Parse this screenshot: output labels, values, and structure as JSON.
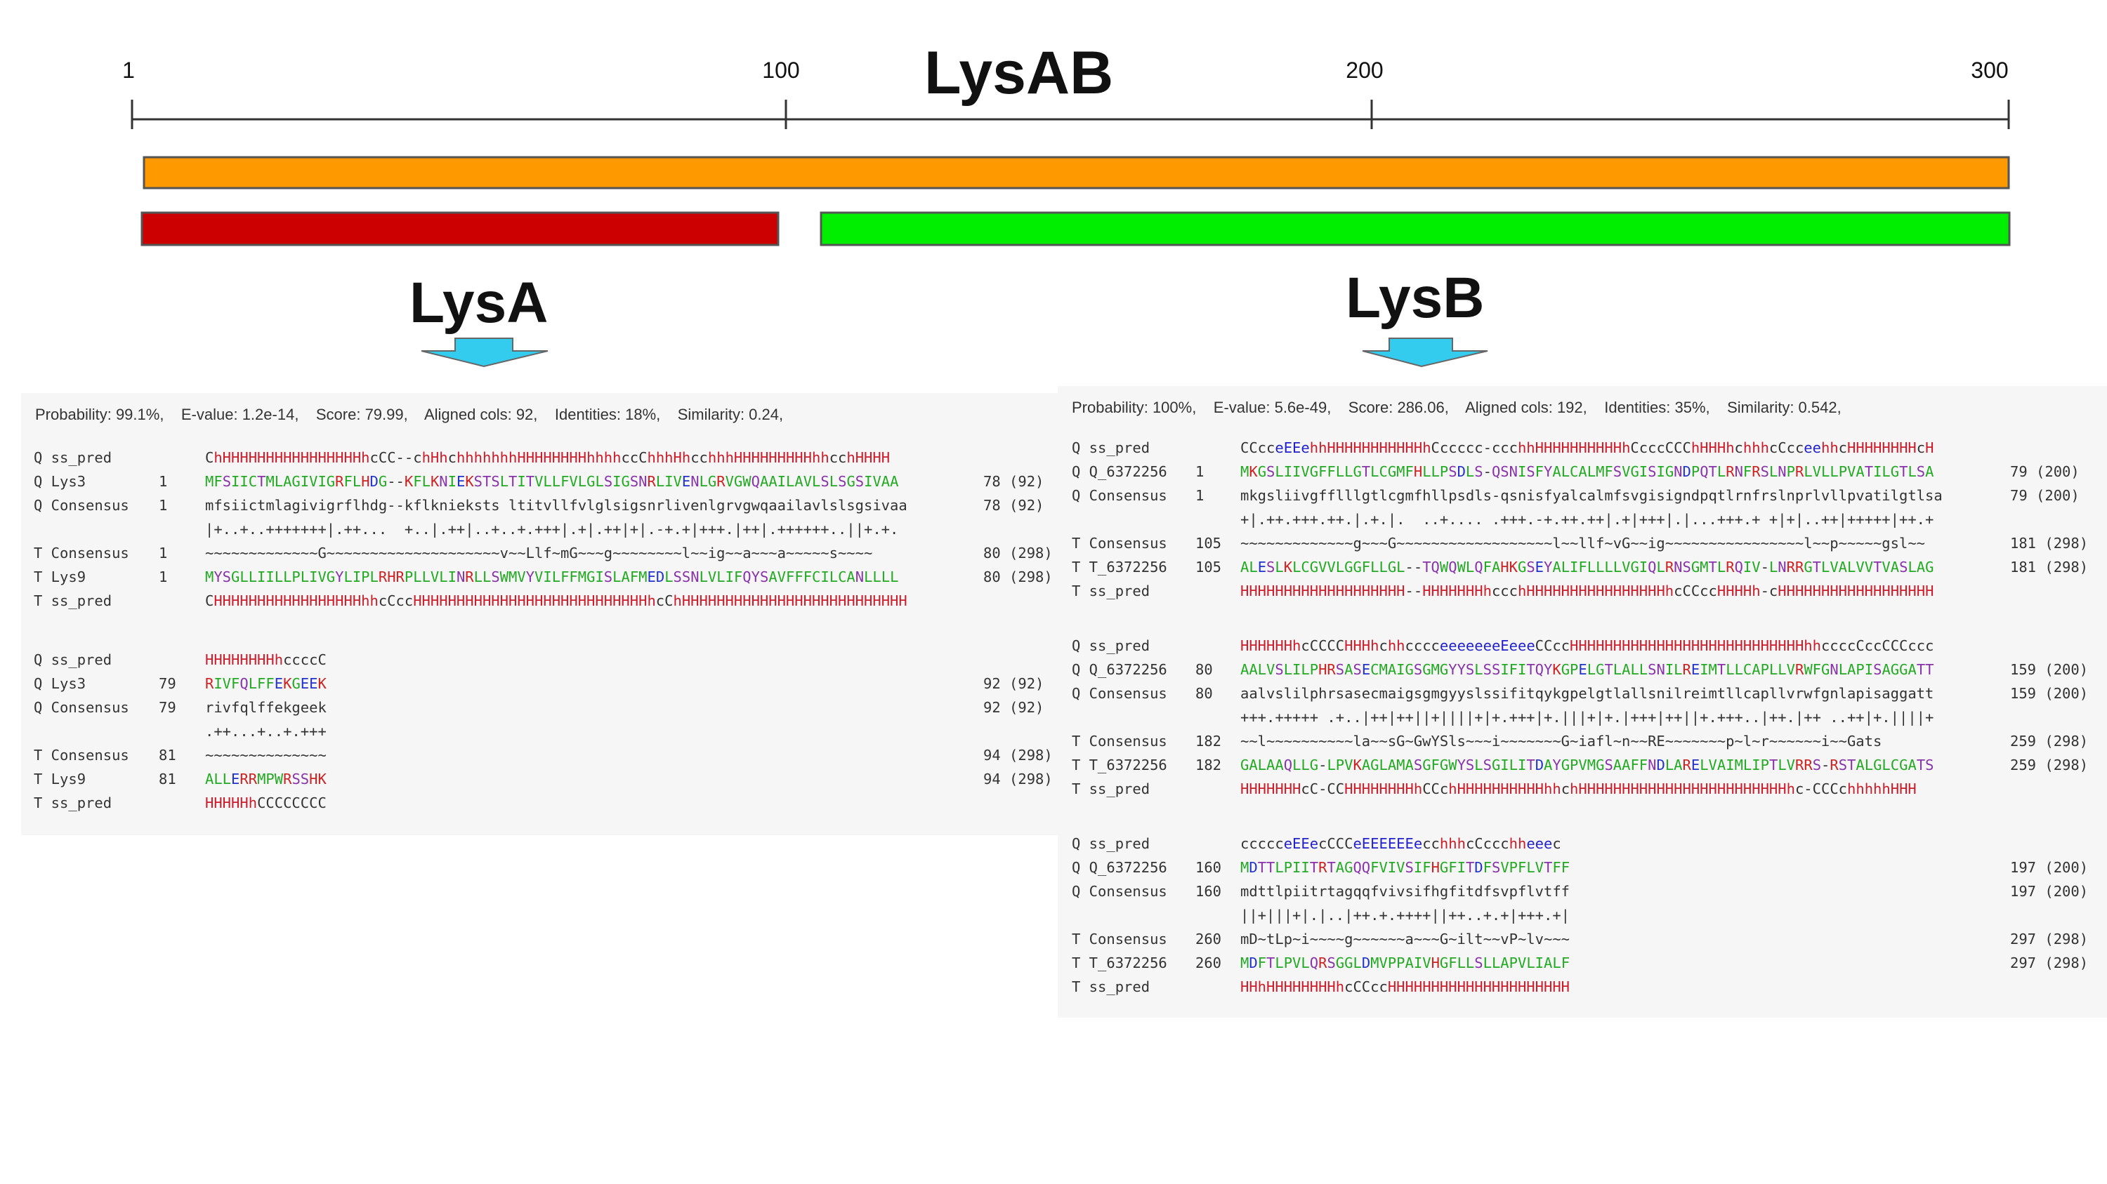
{
  "title": "LysAB",
  "scale": {
    "ticks": [
      {
        "label": "1",
        "value": 1
      },
      {
        "label": "100",
        "value": 100
      },
      {
        "label": "200",
        "value": 200
      },
      {
        "label": "300",
        "value": 300
      }
    ]
  },
  "domains": [
    {
      "name": "LysAB",
      "color": "#ff9900"
    },
    {
      "name": "LysA",
      "color": "#cc0000"
    },
    {
      "name": "LysB",
      "color": "#00ee00"
    }
  ],
  "arrow_color": "#33ccee",
  "labels": {
    "lysA": "LysA",
    "lysB": "LysB"
  },
  "lysA": {
    "stats": "Probability: 99.1%,    E-value: 1.2e-14,    Score: 79.99,    Aligned cols: 92,    Identities: 18%,    Similarity: 0.24,",
    "blocks": [
      {
        "rows": [
          {
            "label": "Q ss_pred",
            "start": "",
            "seq": "ChHHHHHHHHHHHHHHHHhcCC--chHhchhhhhhhHHHHHHHHhhhhccChhhHhcchhhHHHHHHHHHhhcchHHHH",
            "end": "",
            "kind": "ss"
          },
          {
            "label": "Q Lys3",
            "start": "1",
            "seq": "MFSIICTMLAGIVIGRFLHDG--KFLKNIEKSTSLTITVLLFVLGLSIGSNRLIVENLGRVGWQAAILAVLSLSGSIVAA",
            "end": "78 (92)",
            "kind": "aa"
          },
          {
            "label": "Q Consensus",
            "start": "1",
            "seq": "mfsiictmlagivigrflhdg--kflknieksts ltitvllfvlglsigsnrlivenlgrvgwqaailavlslsgsivaa",
            "end": "78 (92)",
            "kind": "plain"
          },
          {
            "label": "",
            "start": "",
            "seq": "|+..+..+++++++|.++...  +..|.++|..+..+.+++|.+|.++|+|.-+.+|+++.|++|.++++++..||+.+.",
            "end": "",
            "kind": "plain"
          },
          {
            "label": "T Consensus",
            "start": "1",
            "seq": "~~~~~~~~~~~~~G~~~~~~~~~~~~~~~~~~~~v~~Llf~mG~~~g~~~~~~~~l~~ig~~a~~~a~~~~~s~~~~",
            "end": "80 (298)",
            "kind": "plain"
          },
          {
            "label": "T Lys9",
            "start": "1",
            "seq": "MYSGLLIILLPLIVGYLIPLRHRPLLVLINRLLSWMVYVILFFMGISLAFMEDLSSNLVLIFQYSAVFFFCILCANLLLL",
            "end": "80 (298)",
            "kind": "aa"
          },
          {
            "label": "T ss_pred",
            "start": "",
            "seq": "CHHHHHHHHHHHHHHHHHhhcCccHHHHHHHHHHHHHHHHHHHHHHHHHHHhcChHHHHHHHHHHHHHHHHHHHHHHHHHH",
            "end": "",
            "kind": "ss"
          }
        ]
      },
      {
        "rows": [
          {
            "label": "Q ss_pred",
            "start": "",
            "seq": "HHHHHHHHhccccC",
            "end": "",
            "kind": "ss"
          },
          {
            "label": "Q Lys3",
            "start": "79",
            "seq": "RIVFQLFFEKGEEK",
            "end": "92 (92)",
            "kind": "aa"
          },
          {
            "label": "Q Consensus",
            "start": "79",
            "seq": "rivfqlffekgeek",
            "end": "92 (92)",
            "kind": "plain"
          },
          {
            "label": "",
            "start": "",
            "seq": ".++...+..+.+++",
            "end": "",
            "kind": "plain"
          },
          {
            "label": "T Consensus",
            "start": "81",
            "seq": "~~~~~~~~~~~~~~",
            "end": "94 (298)",
            "kind": "plain"
          },
          {
            "label": "T Lys9",
            "start": "81",
            "seq": "ALLERRMPWRSSHK",
            "end": "94 (298)",
            "kind": "aa"
          },
          {
            "label": "T ss_pred",
            "start": "",
            "seq": "HHHHHhCCCCCCCC",
            "end": "",
            "kind": "ss"
          }
        ]
      }
    ]
  },
  "lysB": {
    "stats": "Probability: 100%,    E-value: 5.6e-49,    Score: 286.06,    Aligned cols: 192,    Identities: 35%,    Similarity: 0.542,",
    "blocks": [
      {
        "rows": [
          {
            "label": "Q ss_pred",
            "start": "",
            "seq": "CCcceEEehhHHHHHHHHHHHhCccccc-ccchhHHHHHHHHHHhCcccCCChHHHhchhhcCcceehhcHHHHHHHHcH",
            "end": "",
            "kind": "ss"
          },
          {
            "label": "Q Q_6372256",
            "start": "1",
            "seq": "MKGSLIIVGFFLLGTLCGMFHLLPSDLS-QSNISFYALCALMFSVGISIGNDPQTLRNFRSLNPRLVLLPVATILGTLSA",
            "end": "79 (200)",
            "kind": "aa"
          },
          {
            "label": "Q Consensus",
            "start": "1",
            "seq": "mkgsliivgfflllgtlcgmfhllpsdls-qsnisfyalcalmfsvgisigndpqtlrnfrslnprlvllpvatilgtlsa",
            "end": "79 (200)",
            "kind": "plain"
          },
          {
            "label": "",
            "start": "",
            "seq": "+|.++.+++.++.|.+.|.  ..+.... .+++.-+.++.++|.+|+++|.|...+++.+ +|+|..++|+++++|++.+",
            "end": "",
            "kind": "plain"
          },
          {
            "label": "T Consensus",
            "start": "105",
            "seq": "~~~~~~~~~~~~~g~~~G~~~~~~~~~~~~~~~~~~l~~llf~vG~~ig~~~~~~~~~~~~~~~~l~~p~~~~~gsl~~",
            "end": "181 (298)",
            "kind": "plain"
          },
          {
            "label": "T T_6372256",
            "start": "105",
            "seq": "ALESLKLCGVVLGGFLLGL--TQWQWLQFAHKGSEYALIFLLLLVGIQLRNSGMTLRQIV-LNRRGTLVALVVTVASLAG",
            "end": "181 (298)",
            "kind": "aa"
          },
          {
            "label": "T ss_pred",
            "start": "",
            "seq": "HHHHHHHHHHHHHHHHHHH--HHHHHHHhccchHHHHHHHHHHHHHHHHhcCCccHHHHh-cHHHHHHHHHHHHHHHHHH",
            "end": "",
            "kind": "ss"
          }
        ]
      },
      {
        "rows": [
          {
            "label": "Q ss_pred",
            "start": "",
            "seq": "HHHHHHhcCCCCHHHhchhcccceeeeeeeEeeeCCccHHHHHHHHHHHHHHHHHHHHHHHHHHHhhccccCccCCCccc",
            "end": "",
            "kind": "ss"
          },
          {
            "label": "Q Q_6372256",
            "start": "80",
            "seq": "AALVSLILPHRSASECMAIGSGMGYYSLSSIFITQYKGPELGTLALLSNILREIMTLLCAPLLVRWFGNLAPISAGGATT",
            "end": "159 (200)",
            "kind": "aa"
          },
          {
            "label": "Q Consensus",
            "start": "80",
            "seq": "aalvslilphrsasecmaigsgmgyyslssifitqykgpelgtlallsnilreimtllcapllvrwfgnlapisaggatt",
            "end": "159 (200)",
            "kind": "plain"
          },
          {
            "label": "",
            "start": "",
            "seq": "+++.+++++ .+..|++|++||+||||+|+.+++|+.|||+|+.|+++|++||+.+++..|++.|++ ..++|+.||||+",
            "end": "",
            "kind": "plain"
          },
          {
            "label": "T Consensus",
            "start": "182",
            "seq": "~~l~~~~~~~~~~la~~sG~GwYSls~~~i~~~~~~~G~iafl~n~~RE~~~~~~~p~l~r~~~~~~i~~Gats",
            "end": "259 (298)",
            "kind": "plain"
          },
          {
            "label": "T T_6372256",
            "start": "182",
            "seq": "GALAAQLLG-LPVKAGLAMASGFGWYSLSGILITDAYGPVMGSAAFFNDLARELVAIMLIPTLVRRS-RSTALGLCGATS",
            "end": "259 (298)",
            "kind": "aa"
          },
          {
            "label": "T ss_pred",
            "start": "",
            "seq": "HHHHHHHcC-CCHHHHHHHHhCCchHHHHHHHHHHhhchHHHHHHHHHHHHHHHHHHHHHHHHhc-CCCchhhhhHHH",
            "end": "",
            "kind": "ss"
          }
        ]
      },
      {
        "rows": [
          {
            "label": "Q ss_pred",
            "start": "",
            "seq": "ccccceEEecCCCeEEEEEEecchhhcCccchheeec",
            "end": "",
            "kind": "ss"
          },
          {
            "label": "Q Q_6372256",
            "start": "160",
            "seq": "MDTTLPIITRTAGQQFVIVSIFHGFITDFSVPFLVTFF",
            "end": "197 (200)",
            "kind": "aa"
          },
          {
            "label": "Q Consensus",
            "start": "160",
            "seq": "mdttlpiitrtagqqfvivsifhgfitdfsvpflvtff",
            "end": "197 (200)",
            "kind": "plain"
          },
          {
            "label": "",
            "start": "",
            "seq": "||+|||+|.|..|++.+.++++||++..+.+|+++.+|",
            "end": "",
            "kind": "plain"
          },
          {
            "label": "T Consensus",
            "start": "260",
            "seq": "mD~tLp~i~~~~g~~~~~~a~~~G~ilt~~vP~lv~~~",
            "end": "297 (298)",
            "kind": "plain"
          },
          {
            "label": "T T_6372256",
            "start": "260",
            "seq": "MDFTLPVLQRSGGLDMVPPAIVHGFLLSLLAPVLIALF",
            "end": "297 (298)",
            "kind": "aa"
          },
          {
            "label": "T ss_pred",
            "start": "",
            "seq": "HHhHHHHHHHHhcCCccHHHHHHHHHHHHHHHHHHHHH",
            "end": "",
            "kind": "ss"
          }
        ]
      }
    ]
  }
}
